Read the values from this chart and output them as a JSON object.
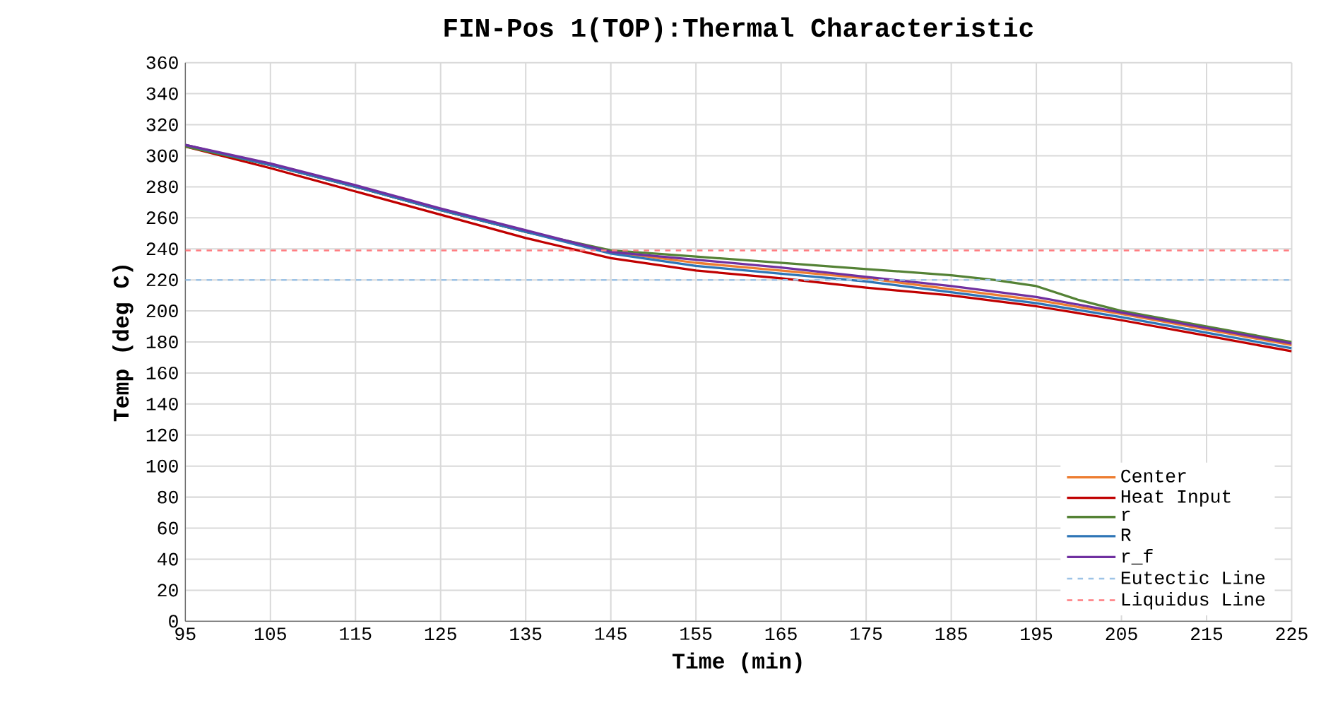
{
  "chart_data": {
    "type": "line",
    "title": "FIN-Pos 1(TOP):Thermal Characteristic",
    "xlabel": "Time (min)",
    "ylabel": "Temp (deg C)",
    "xlim": [
      95,
      225
    ],
    "xticks": [
      95,
      105,
      115,
      125,
      135,
      145,
      155,
      165,
      175,
      185,
      195,
      205,
      215,
      225
    ],
    "ylim": [
      0,
      360
    ],
    "yticks": [
      0,
      20,
      40,
      60,
      80,
      100,
      120,
      140,
      160,
      180,
      200,
      220,
      240,
      260,
      280,
      300,
      320,
      340,
      360
    ],
    "grid": true,
    "legend": "bottom right",
    "marker": "none",
    "x": [
      95,
      105,
      115,
      125,
      135,
      145,
      155,
      165,
      175,
      185,
      195,
      205,
      215,
      225
    ],
    "series": [
      {
        "name": "Center",
        "color": "#ed7d31",
        "values": [
          307,
          294,
          280,
          265,
          251,
          238,
          231,
          226,
          221,
          214,
          207,
          198,
          188,
          178
        ]
      },
      {
        "name": "Heat Input",
        "color": "#c00000",
        "values": [
          306,
          292,
          277,
          262,
          247,
          234,
          226,
          221,
          215,
          210,
          203,
          194,
          184,
          174
        ]
      },
      {
        "name": "r",
        "color": "#548235",
        "x": [
          95,
          105,
          115,
          125,
          135,
          145,
          155,
          165,
          175,
          185,
          190,
          195,
          200,
          205,
          215,
          225
        ],
        "values": [
          306,
          294,
          280,
          265,
          251,
          239,
          235,
          231,
          227,
          223,
          220,
          216,
          207,
          200,
          190,
          180
        ]
      },
      {
        "name": "R",
        "color": "#2e75b6",
        "values": [
          307,
          294,
          280,
          265,
          251,
          237,
          229,
          224,
          219,
          212,
          205,
          196,
          186,
          176
        ]
      },
      {
        "name": "r_f",
        "color": "#7030a0",
        "values": [
          307,
          295,
          281,
          266,
          252,
          238,
          233,
          228,
          222,
          216,
          209,
          199,
          189,
          179
        ]
      },
      {
        "name": "Eutectic Line",
        "color": "#9dc3e6",
        "line_style": "dashed",
        "x": [
          95,
          225
        ],
        "values": [
          220,
          220
        ]
      },
      {
        "name": "Liquidus Line",
        "color": "#ff7c80",
        "line_style": "dashed",
        "x": [
          95,
          225
        ],
        "values": [
          239,
          239
        ]
      }
    ]
  }
}
